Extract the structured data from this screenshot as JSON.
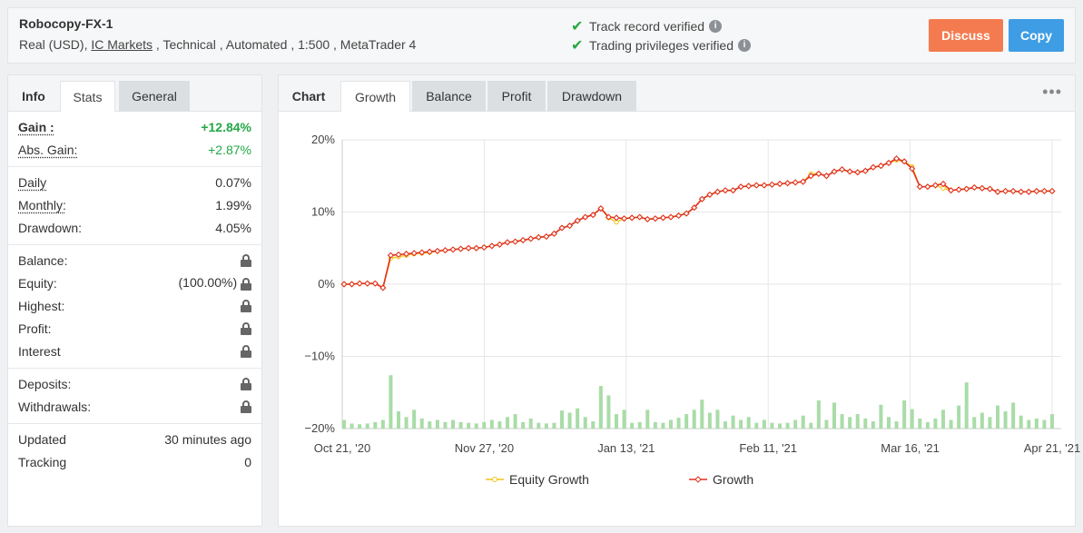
{
  "header": {
    "account_name": "Robocopy-FX-1",
    "meta_prefix": "Real (USD), ",
    "broker": "IC Markets",
    "meta_suffix": " , Technical , Automated , 1:500 , MetaTrader 4",
    "verify_track": "Track record verified",
    "verify_privileges": "Trading privileges verified",
    "discuss_label": "Discuss",
    "copy_label": "Copy",
    "colors": {
      "discuss": "#f47b4f",
      "copy": "#3e9de4",
      "verified": "#27a844"
    }
  },
  "left_tabs": {
    "info": "Info",
    "stats": "Stats",
    "general": "General"
  },
  "stats": {
    "gain_label": "Gain :",
    "gain_value": "+12.84%",
    "abs_gain_label": "Abs. Gain:",
    "abs_gain_value": "+2.87%",
    "daily_label": "Daily",
    "daily_value": "0.07%",
    "monthly_label": "Monthly:",
    "monthly_value": "1.99%",
    "drawdown_label": "Drawdown:",
    "drawdown_value": "4.05%",
    "balance_label": "Balance:",
    "equity_label": "Equity:",
    "equity_value": "(100.00%)",
    "highest_label": "Highest:",
    "profit_label": "Profit:",
    "interest_label": "Interest",
    "deposits_label": "Deposits:",
    "withdrawals_label": "Withdrawals:",
    "updated_label": "Updated",
    "updated_value": "30 minutes ago",
    "tracking_label": "Tracking",
    "tracking_value": "0",
    "lock_icon": "lock-icon"
  },
  "right_tabs": {
    "chart": "Chart",
    "growth": "Growth",
    "balance": "Balance",
    "profit": "Profit",
    "drawdown": "Drawdown",
    "more": "•••"
  },
  "chart_data": {
    "type": "line",
    "y_ticks": [
      "20%",
      "10%",
      "0%",
      "−10%",
      "−20%"
    ],
    "ylim": [
      -20,
      20
    ],
    "x_ticks": [
      "Oct 21, '20",
      "Nov 27, '20",
      "Jan 13, '21",
      "Feb 11, '21",
      "Mar 16, '21",
      "Apr 21, '21"
    ],
    "legend_position": "bottom",
    "grid": true,
    "series": [
      {
        "name": "Equity Growth",
        "color": "#f0c419",
        "values": [
          0,
          0,
          0.1,
          0.1,
          0.1,
          -0.5,
          3.6,
          3.8,
          4.0,
          4.2,
          4.3,
          4.4,
          4.6,
          4.7,
          4.8,
          4.9,
          5.0,
          5.0,
          5.1,
          5.3,
          5.5,
          5.8,
          5.9,
          6.1,
          6.3,
          6.5,
          6.6,
          7.0,
          7.8,
          8.1,
          8.8,
          9.3,
          9.6,
          10.5,
          9.2,
          8.6,
          9.1,
          9.2,
          9.3,
          9.0,
          9.1,
          9.2,
          9.3,
          9.5,
          9.8,
          10.6,
          11.8,
          12.4,
          12.8,
          13.0,
          13.0,
          13.5,
          13.6,
          13.7,
          13.7,
          13.8,
          13.9,
          14.0,
          14.1,
          14.2,
          15.3,
          15.3,
          15.0,
          15.6,
          15.9,
          15.6,
          15.5,
          15.7,
          16.2,
          16.4,
          16.8,
          17.2,
          17.0,
          16.3,
          13.5,
          13.5,
          13.7,
          13.3,
          13.0,
          13.1,
          13.2,
          13.4,
          13.3,
          13.2,
          12.8,
          12.9,
          12.9,
          12.8,
          12.8,
          12.9,
          12.9,
          12.9
        ]
      },
      {
        "name": "Growth",
        "color": "#e0321f",
        "values": [
          0,
          0,
          0.1,
          0.1,
          0.1,
          -0.5,
          4.0,
          4.1,
          4.2,
          4.3,
          4.4,
          4.5,
          4.6,
          4.7,
          4.8,
          4.9,
          5.0,
          5.0,
          5.1,
          5.3,
          5.5,
          5.8,
          5.9,
          6.1,
          6.3,
          6.5,
          6.6,
          7.0,
          7.8,
          8.1,
          8.8,
          9.3,
          9.6,
          10.5,
          9.3,
          9.2,
          9.1,
          9.2,
          9.3,
          9.0,
          9.1,
          9.2,
          9.3,
          9.5,
          9.8,
          10.6,
          11.8,
          12.4,
          12.8,
          13.0,
          13.0,
          13.5,
          13.6,
          13.7,
          13.7,
          13.8,
          13.9,
          14.0,
          14.1,
          14.2,
          15.0,
          15.3,
          15.0,
          15.6,
          15.9,
          15.6,
          15.5,
          15.7,
          16.2,
          16.4,
          16.8,
          17.4,
          17.0,
          16.0,
          13.5,
          13.5,
          13.7,
          13.9,
          13.0,
          13.1,
          13.2,
          13.4,
          13.3,
          13.2,
          12.8,
          12.9,
          12.9,
          12.8,
          12.8,
          12.9,
          12.9,
          12.9
        ]
      }
    ],
    "volume_bars": [
      1.2,
      0.7,
      0.6,
      0.7,
      0.9,
      1.2,
      7.4,
      2.4,
      1.6,
      2.6,
      1.4,
      1.0,
      1.2,
      0.9,
      1.2,
      0.9,
      0.8,
      0.7,
      0.9,
      1.2,
      1.0,
      1.6,
      2.0,
      0.9,
      1.4,
      0.8,
      0.7,
      0.8,
      2.5,
      2.2,
      2.8,
      1.6,
      1.0,
      5.9,
      4.6,
      2.0,
      2.6,
      0.8,
      0.9,
      2.6,
      0.9,
      0.8,
      1.2,
      1.5,
      2.0,
      2.6,
      4.0,
      2.2,
      2.6,
      1.0,
      1.8,
      1.2,
      1.6,
      0.8,
      1.2,
      0.8,
      0.7,
      0.8,
      1.2,
      1.8,
      0.8,
      3.9,
      1.2,
      3.6,
      2.0,
      1.6,
      2.0,
      1.4,
      1.0,
      3.3,
      1.6,
      1.0,
      3.9,
      2.7,
      1.4,
      0.9,
      1.4,
      2.6,
      1.2,
      3.2,
      6.4,
      1.6,
      2.2,
      1.6,
      3.2,
      2.4,
      3.6,
      1.8,
      1.2,
      1.4,
      1.2,
      2.0
    ]
  }
}
